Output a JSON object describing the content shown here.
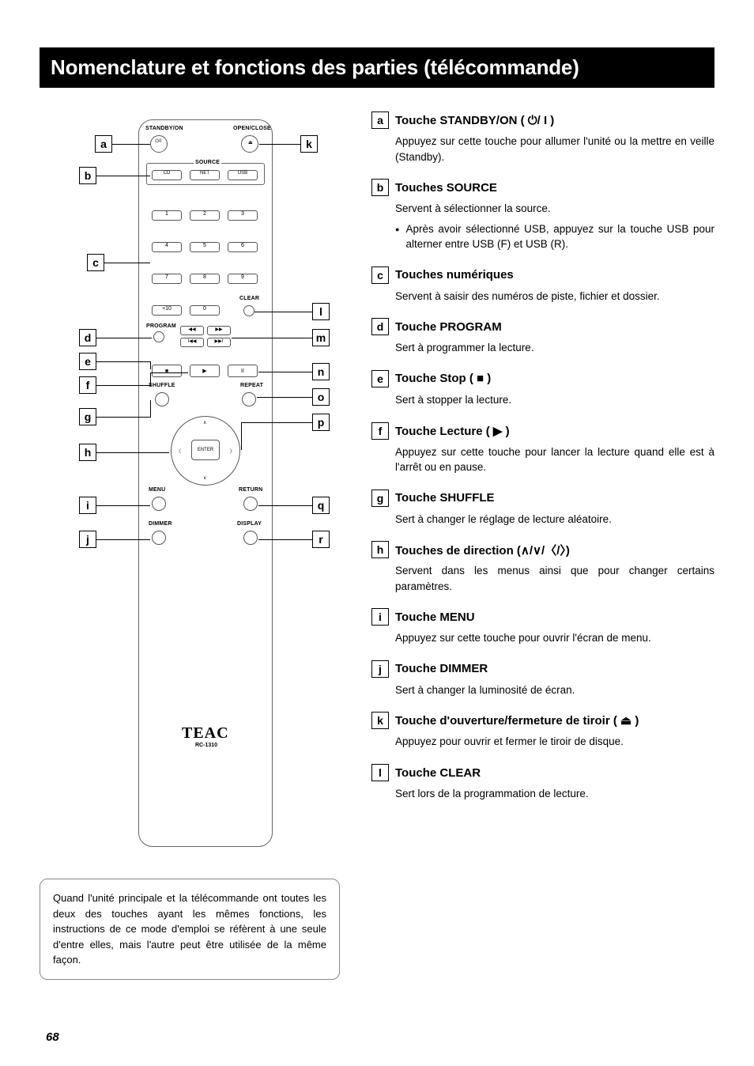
{
  "title": "Nomenclature et fonctions des parties (télécommande)",
  "page_number": "68",
  "note": "Quand l'unité principale et la télécommande ont toutes les deux des touches ayant les mêmes fonctions, les instructions de ce mode d'emploi se réfèrent à une seule d'entre elles, mais l'autre peut être utilisée de la même façon.",
  "remote": {
    "brand": "TEAC",
    "model": "RC-1310",
    "labels": {
      "standby": "STANDBY/ON",
      "openclose": "OPEN/CLOSE",
      "source": "SOURCE",
      "cd": "CD",
      "net": "NET",
      "usb": "USB",
      "n1": "1",
      "n2": "2",
      "n3": "3",
      "n4": "4",
      "n5": "5",
      "n6": "6",
      "n7": "7",
      "n8": "8",
      "n9": "9",
      "n0": "0",
      "p10": "+10",
      "clear": "CLEAR",
      "program": "PROGRAM",
      "shuffle": "SHUFFLE",
      "repeat": "REPEAT",
      "menu": "MENU",
      "return": "RETURN",
      "enter": "ENTER",
      "dimmer": "DIMMER",
      "display": "DISPLAY"
    }
  },
  "items": [
    {
      "key": "a",
      "title": "Touche STANDBY/ON ( ⏻/ I )",
      "desc": "Appuyez sur cette touche pour allumer l'unité ou la mettre en veille (Standby)."
    },
    {
      "key": "b",
      "title": "Touches SOURCE",
      "desc": "Servent à sélectionner la source.",
      "bullet": "Après avoir sélectionné USB, appuyez sur la touche USB pour alterner entre USB (F) et USB (R)."
    },
    {
      "key": "c",
      "title": "Touches numériques",
      "desc": "Servent à saisir des numéros de piste, fichier et dossier."
    },
    {
      "key": "d",
      "title": "Touche PROGRAM",
      "desc": "Sert à programmer la lecture."
    },
    {
      "key": "e",
      "title": "Touche Stop ( ■ )",
      "desc": "Sert à stopper la lecture."
    },
    {
      "key": "f",
      "title": "Touche Lecture ( ▶ )",
      "desc": "Appuyez sur cette touche pour lancer la lecture quand elle est à l'arrêt ou en pause."
    },
    {
      "key": "g",
      "title": "Touche SHUFFLE",
      "desc": "Sert à changer le réglage de lecture aléatoire."
    },
    {
      "key": "h",
      "title": "Touches de direction (∧/∨/〈/〉)",
      "desc": "Servent dans les menus ainsi que pour changer certains paramètres."
    },
    {
      "key": "i",
      "title": "Touche MENU",
      "desc": "Appuyez sur cette touche pour ouvrir l'écran de menu."
    },
    {
      "key": "j",
      "title": "Touche DIMMER",
      "desc": "Sert à changer la luminosité de écran."
    },
    {
      "key": "k",
      "title": "Touche d'ouverture/fermeture de tiroir ( ⏏ )",
      "desc": "Appuyez pour ouvrir et fermer le tiroir de disque."
    },
    {
      "key": "l",
      "title": "Touche CLEAR",
      "desc": "Sert lors de la programmation de lecture."
    }
  ]
}
